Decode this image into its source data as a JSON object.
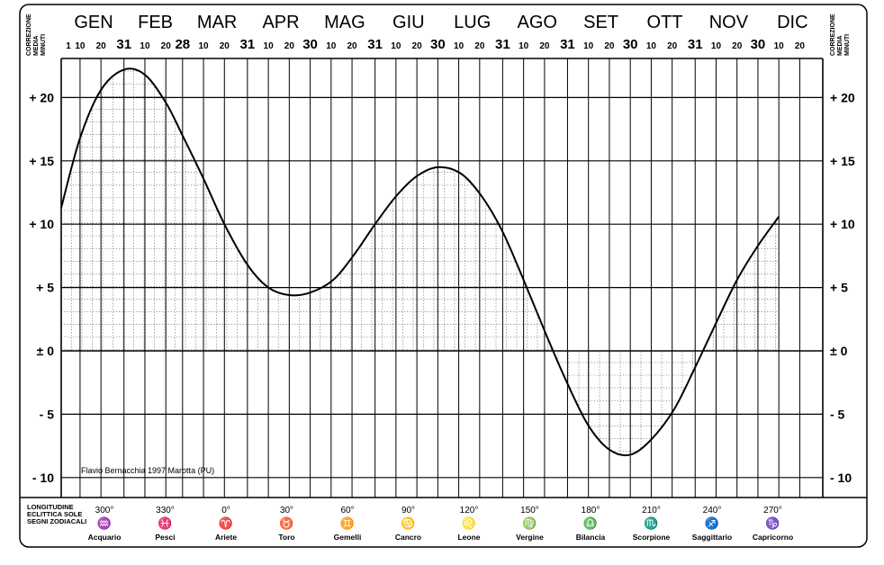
{
  "chart_data": {
    "type": "line",
    "ylabel_left": [
      "CORREZIONE",
      "MEDIA",
      "MINUTI"
    ],
    "ylabel_right": [
      "CORREZIONE",
      "MEDIA",
      "MINUTI"
    ],
    "ylim": [
      -11,
      24
    ],
    "y_ticks": [
      {
        "v": 20,
        "label": "+ 20"
      },
      {
        "v": 15,
        "label": "+ 15"
      },
      {
        "v": 10,
        "label": "+ 10"
      },
      {
        "v": 5,
        "label": "+ 5"
      },
      {
        "v": 0,
        "label": "± 0"
      },
      {
        "v": -5,
        "label": "- 5"
      },
      {
        "v": -10,
        "label": "- 10"
      }
    ],
    "months": [
      "GEN",
      "FEB",
      "MAR",
      "APR",
      "MAG",
      "GIU",
      "LUG",
      "AGO",
      "SET",
      "OTT",
      "NOV",
      "DIC"
    ],
    "month_lengths": [
      31,
      28,
      31,
      30,
      31,
      30,
      31,
      31,
      30,
      31,
      30,
      31
    ],
    "first_day_label": "1",
    "series": [
      {
        "points": [
          [
            1,
            11.3
          ],
          [
            10,
            16.8
          ],
          [
            20,
            20.6
          ],
          [
            31,
            22.2
          ],
          [
            41,
            21.8
          ],
          [
            51,
            19.6
          ],
          [
            59,
            17.0
          ],
          [
            69,
            13.6
          ],
          [
            79,
            10.0
          ],
          [
            90,
            6.8
          ],
          [
            100,
            5.0
          ],
          [
            110,
            4.4
          ],
          [
            120,
            4.6
          ],
          [
            131,
            5.6
          ],
          [
            141,
            7.6
          ],
          [
            151,
            10.0
          ],
          [
            161,
            12.2
          ],
          [
            171,
            13.8
          ],
          [
            181,
            14.5
          ],
          [
            192,
            14.0
          ],
          [
            202,
            12.2
          ],
          [
            212,
            9.4
          ],
          [
            222,
            5.6
          ],
          [
            233,
            1.2
          ],
          [
            243,
            -2.6
          ],
          [
            253,
            -5.9
          ],
          [
            263,
            -7.8
          ],
          [
            273,
            -8.2
          ],
          [
            283,
            -7.0
          ],
          [
            294,
            -4.6
          ],
          [
            304,
            -1.3
          ],
          [
            314,
            2.2
          ],
          [
            324,
            5.6
          ],
          [
            334,
            8.3
          ],
          [
            344,
            10.6
          ]
        ]
      }
    ],
    "grid": "on, line every 10 days, dotted mesh under the curve",
    "annotation": "Flavio Bernacchia 1997 Marotta (PU)",
    "legend": {
      "header": [
        "LONGITUDINE",
        "ECLITTICA SOLE",
        "SEGNI ZODIACALI"
      ],
      "signs": [
        {
          "degree": "300°",
          "glyph": "♒",
          "name": "Acquario"
        },
        {
          "degree": "330°",
          "glyph": "♓",
          "name": "Pesci"
        },
        {
          "degree": "0°",
          "glyph": "♈",
          "name": "Ariete"
        },
        {
          "degree": "30°",
          "glyph": "♉",
          "name": "Toro"
        },
        {
          "degree": "60°",
          "glyph": "♊",
          "name": "Gemelli"
        },
        {
          "degree": "90°",
          "glyph": "♋",
          "name": "Cancro"
        },
        {
          "degree": "120°",
          "glyph": "♌",
          "name": "Leone"
        },
        {
          "degree": "150°",
          "glyph": "♍",
          "name": "Vergine"
        },
        {
          "degree": "180°",
          "glyph": "♎",
          "name": "Bilancia"
        },
        {
          "degree": "210°",
          "glyph": "♏",
          "name": "Scorpione"
        },
        {
          "degree": "240°",
          "glyph": "♐",
          "name": "Saggittario"
        },
        {
          "degree": "270°",
          "glyph": "♑",
          "name": "Capricorno"
        }
      ]
    }
  }
}
